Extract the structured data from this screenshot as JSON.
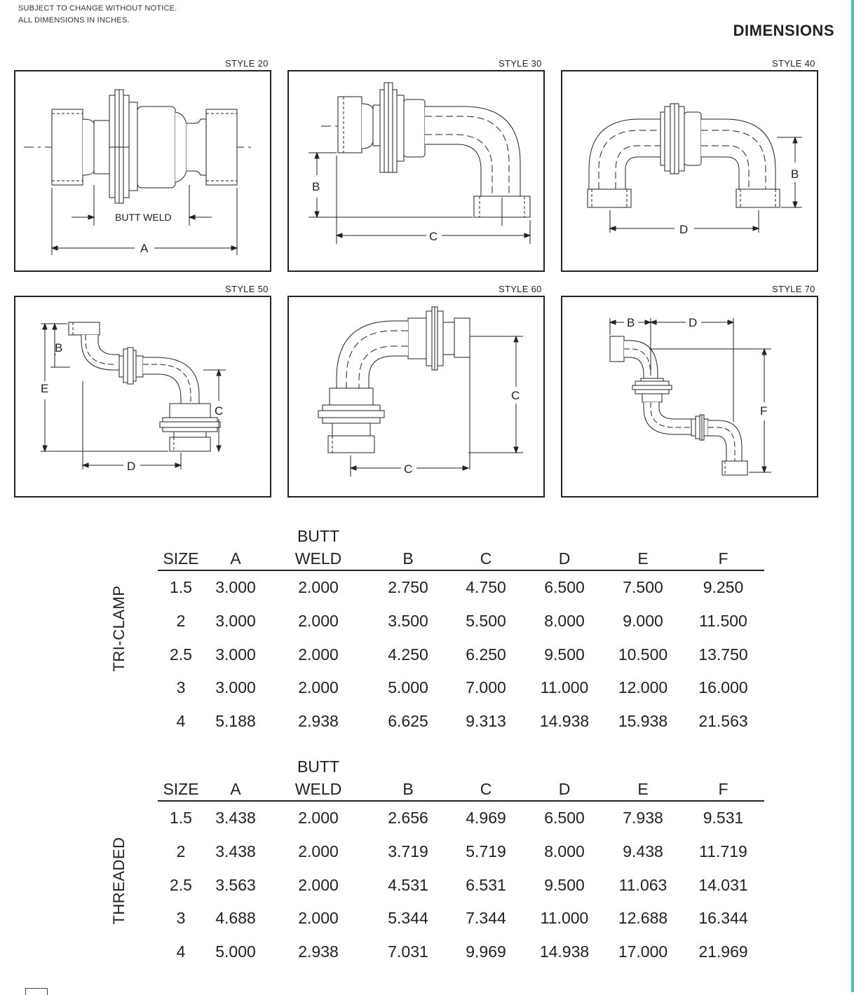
{
  "header": {
    "note_line1": "SUBJECT TO CHANGE WITHOUT NOTICE.",
    "note_line2": "ALL DIMENSIONS IN INCHES.",
    "title": "DIMENSIONS"
  },
  "figures": {
    "style20": {
      "label": "STYLE 20",
      "dim_a": "A",
      "butt_weld": "BUTT WELD"
    },
    "style30": {
      "label": "STYLE 30",
      "dim_b": "B",
      "dim_c": "C"
    },
    "style40": {
      "label": "STYLE 40",
      "dim_b": "B",
      "dim_d": "D"
    },
    "style50": {
      "label": "STYLE 50",
      "dim_b": "B",
      "dim_c": "C",
      "dim_d": "D",
      "dim_e": "E"
    },
    "style60": {
      "label": "STYLE 60",
      "dim_c_vertical": "C",
      "dim_c_horizontal": "C"
    },
    "style70": {
      "label": "STYLE 70",
      "dim_b": "B",
      "dim_d": "D",
      "dim_f": "F"
    }
  },
  "tri_clamp": {
    "section_label": "TRI-CLAMP",
    "headers": {
      "size": "SIZE",
      "a": "A",
      "butt_weld_line1": "BUTT",
      "butt_weld_line2": "WELD",
      "b": "B",
      "c": "C",
      "d": "D",
      "e": "E",
      "f": "F"
    },
    "rows": [
      [
        "1.5",
        "3.000",
        "2.000",
        "2.750",
        "4.750",
        "6.500",
        "7.500",
        "9.250"
      ],
      [
        "2",
        "3.000",
        "2.000",
        "3.500",
        "5.500",
        "8.000",
        "9.000",
        "11.500"
      ],
      [
        "2.5",
        "3.000",
        "2.000",
        "4.250",
        "6.250",
        "9.500",
        "10.500",
        "13.750"
      ],
      [
        "3",
        "3.000",
        "2.000",
        "5.000",
        "7.000",
        "11.000",
        "12.000",
        "16.000"
      ],
      [
        "4",
        "5.188",
        "2.938",
        "6.625",
        "9.313",
        "14.938",
        "15.938",
        "21.563"
      ]
    ]
  },
  "threaded": {
    "section_label": "THREADED",
    "headers": {
      "size": "SIZE",
      "a": "A",
      "butt_weld_line1": "BUTT",
      "butt_weld_line2": "WELD",
      "b": "B",
      "c": "C",
      "d": "D",
      "e": "E",
      "f": "F"
    },
    "rows": [
      [
        "1.5",
        "3.438",
        "2.000",
        "2.656",
        "4.969",
        "6.500",
        "7.938",
        "9.531"
      ],
      [
        "2",
        "3.438",
        "2.000",
        "3.719",
        "5.719",
        "8.000",
        "9.438",
        "11.719"
      ],
      [
        "2.5",
        "3.563",
        "2.000",
        "4.531",
        "6.531",
        "9.500",
        "11.063",
        "14.031"
      ],
      [
        "3",
        "4.688",
        "2.000",
        "5.344",
        "7.344",
        "11.000",
        "12.688",
        "16.344"
      ],
      [
        "4",
        "5.000",
        "2.938",
        "7.031",
        "9.969",
        "14.938",
        "17.000",
        "21.969"
      ]
    ]
  }
}
